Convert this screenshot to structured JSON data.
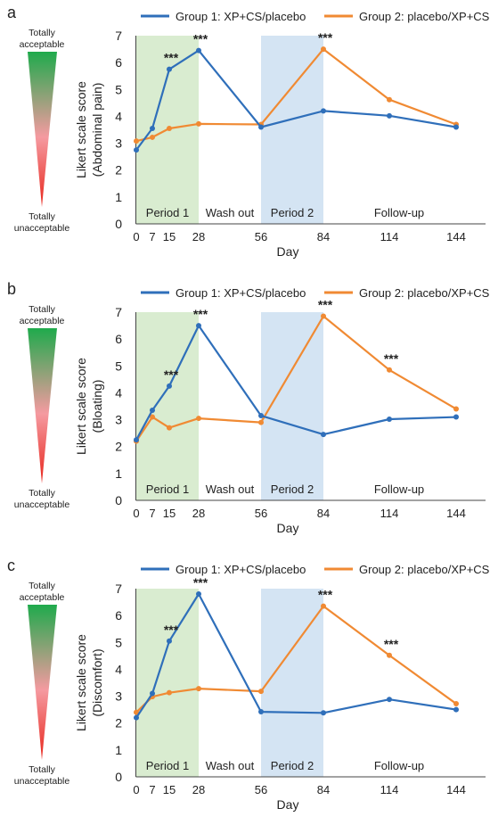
{
  "colors": {
    "group1": "#2f6fba",
    "group2": "#f08a33",
    "period1_fill": "#d9ecd0",
    "period2_fill": "#d4e4f3",
    "scale_top": "#1faa4c",
    "scale_mid": "#f59aa0",
    "scale_bottom": "#e8261c"
  },
  "scale": {
    "top_label_1": "Totally",
    "top_label_2": "acceptable",
    "bottom_label_1": "Totally",
    "bottom_label_2": "unacceptable"
  },
  "legend": {
    "group1": "Group 1: XP+CS/placebo",
    "group2": "Group 2: placebo/XP+CS"
  },
  "periods": {
    "period1": "Period 1",
    "washout": "Wash out",
    "period2": "Period 2",
    "followup": "Follow-up"
  },
  "chart_data": [
    {
      "panel": "a",
      "type": "line",
      "ylabel_1": "Likert scale score",
      "ylabel_2": "(Abdominal pain)",
      "xlabel": "Day",
      "ylim": [
        0,
        7
      ],
      "yticks": [
        "0",
        "1",
        "2",
        "3",
        "4",
        "5",
        "6",
        "7"
      ],
      "x": [
        0,
        7,
        15,
        28,
        56,
        84,
        114,
        144
      ],
      "xticklabels": [
        "0",
        "7",
        "15",
        "28",
        "56",
        "84",
        "114",
        "144"
      ],
      "series": [
        {
          "name": "Group 1: XP+CS/placebo",
          "values": [
            2.75,
            3.55,
            5.75,
            6.45,
            3.6,
            4.2,
            4.02,
            3.6
          ]
        },
        {
          "name": "Group 2: placebo/XP+CS",
          "values": [
            3.08,
            3.22,
            3.55,
            3.72,
            3.7,
            6.5,
            4.62,
            3.7
          ]
        }
      ],
      "annotations": [
        {
          "x": 15,
          "y": 5.75,
          "text": "***"
        },
        {
          "x": 28,
          "y": 6.45,
          "text": "***"
        },
        {
          "x": 84,
          "y": 6.5,
          "text": "***"
        }
      ]
    },
    {
      "panel": "b",
      "type": "line",
      "ylabel_1": "Likert scale score",
      "ylabel_2": "(Bloating)",
      "xlabel": "Day",
      "ylim": [
        0,
        7
      ],
      "yticks": [
        "0",
        "1",
        "2",
        "3",
        "4",
        "5",
        "6",
        "7"
      ],
      "x": [
        0,
        7,
        15,
        28,
        56,
        84,
        114,
        144
      ],
      "xticklabels": [
        "0",
        "7",
        "15",
        "28",
        "56",
        "84",
        "114",
        "144"
      ],
      "series": [
        {
          "name": "Group 1: XP+CS/placebo",
          "values": [
            2.25,
            3.35,
            4.25,
            6.5,
            3.15,
            2.45,
            3.02,
            3.1
          ]
        },
        {
          "name": "Group 2: placebo/XP+CS",
          "values": [
            2.2,
            3.1,
            2.7,
            3.05,
            2.9,
            6.85,
            4.85,
            3.4
          ]
        }
      ],
      "annotations": [
        {
          "x": 15,
          "y": 4.25,
          "text": "***"
        },
        {
          "x": 28,
          "y": 6.5,
          "text": "***"
        },
        {
          "x": 84,
          "y": 6.85,
          "text": "***"
        },
        {
          "x": 114,
          "y": 4.85,
          "text": "***"
        }
      ]
    },
    {
      "panel": "c",
      "type": "line",
      "ylabel_1": "Likert scale score",
      "ylabel_2": "(Discomfort)",
      "xlabel": "Day",
      "ylim": [
        0,
        7
      ],
      "yticks": [
        "0",
        "1",
        "2",
        "3",
        "4",
        "5",
        "6",
        "7"
      ],
      "x": [
        0,
        7,
        15,
        28,
        56,
        84,
        114,
        144
      ],
      "xticklabels": [
        "0",
        "7",
        "15",
        "28",
        "56",
        "84",
        "114",
        "144"
      ],
      "series": [
        {
          "name": "Group 1: XP+CS/placebo",
          "values": [
            2.2,
            3.1,
            5.05,
            6.8,
            2.42,
            2.38,
            2.88,
            2.5
          ]
        },
        {
          "name": "Group 2: placebo/XP+CS",
          "values": [
            2.4,
            2.98,
            3.13,
            3.28,
            3.18,
            6.35,
            4.52,
            2.72
          ]
        }
      ],
      "annotations": [
        {
          "x": 15,
          "y": 5.05,
          "text": "***"
        },
        {
          "x": 28,
          "y": 6.8,
          "text": "***"
        },
        {
          "x": 84,
          "y": 6.35,
          "text": "***"
        },
        {
          "x": 114,
          "y": 4.52,
          "text": "***"
        }
      ]
    }
  ]
}
